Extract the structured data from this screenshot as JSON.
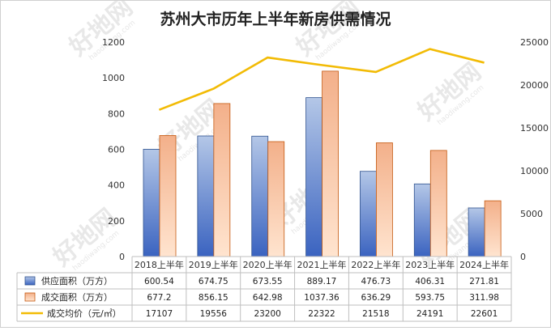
{
  "chart_data": {
    "type": "bar",
    "title": "苏州大市历年上半年新房供需情况",
    "categories": [
      "2018上半年",
      "2019上半年",
      "2020上半年",
      "2021上半年",
      "2022上半年",
      "2023上半年",
      "2024上半年"
    ],
    "series": [
      {
        "name": "供应面积（万方）",
        "type": "bar",
        "axis": "left",
        "color": "#4472c4",
        "values": [
          600.54,
          674.75,
          673.55,
          889.17,
          476.73,
          406.31,
          271.81
        ],
        "labels": [
          "600.54",
          "674.75",
          "673.55",
          "889.17",
          "476.73",
          "406.31",
          "271.81"
        ]
      },
      {
        "name": "成交面积（万方）",
        "type": "bar",
        "axis": "left",
        "color": "#ed7d31",
        "values": [
          677.2,
          856.15,
          642.98,
          1037.36,
          636.29,
          593.75,
          311.98
        ],
        "labels": [
          "677.2",
          "856.15",
          "642.98",
          "1037.36",
          "636.29",
          "593.75",
          "311.98"
        ]
      },
      {
        "name": "成交均价（元/㎡）",
        "type": "line",
        "axis": "right",
        "color": "#f2bb05",
        "values": [
          17107,
          19556,
          23200,
          22322,
          21518,
          24191,
          22601
        ],
        "labels": [
          "17107",
          "19556",
          "23200",
          "22322",
          "21518",
          "24191",
          "22601"
        ]
      }
    ],
    "y_left": {
      "min": 0,
      "max": 1200,
      "ticks": [
        0,
        200,
        400,
        600,
        800,
        1000,
        1200
      ]
    },
    "y_right": {
      "min": 0,
      "max": 25000,
      "ticks": [
        0,
        5000,
        10000,
        15000,
        20000,
        25000
      ]
    },
    "data_table": true,
    "grid": false,
    "watermark": {
      "text": "好地网",
      "sub": "haodiwang.com",
      "color": "#d6d6d6"
    }
  }
}
